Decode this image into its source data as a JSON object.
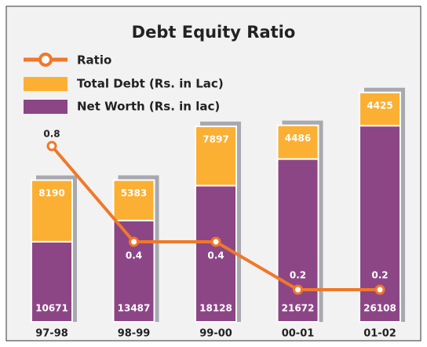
{
  "chart_data": {
    "type": "stacked-bar-line",
    "title": "Debt Equity Ratio",
    "categories": [
      "97-98",
      "98-99",
      "99-00",
      "00-01",
      "01-02"
    ],
    "series": [
      {
        "name": "Net Worth (Rs. in lac)",
        "color": "#8c4686",
        "values": [
          10671,
          13487,
          18128,
          21672,
          26108
        ]
      },
      {
        "name": "Total Debt (Rs. in Lac)",
        "color": "#fbb034",
        "values": [
          8190,
          5383,
          7897,
          4486,
          4425
        ]
      },
      {
        "name": "Ratio",
        "color": "#f0782a",
        "values": [
          0.8,
          0.4,
          0.4,
          0.2,
          0.2
        ],
        "axis": "y2"
      }
    ],
    "ylim": [
      0,
      35000
    ],
    "y2lim": [
      0,
      1
    ]
  }
}
